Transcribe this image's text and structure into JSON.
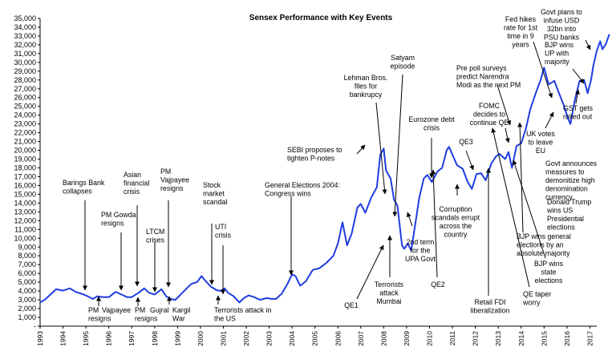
{
  "chart_data": {
    "type": "line",
    "title": "Sensex Performance with Key Events",
    "xlabel": "",
    "ylabel": "",
    "xlim": [
      1993,
      2017.3
    ],
    "ylim": [
      0,
      35000
    ],
    "grid": false,
    "series_color": "#1f3de0",
    "y_ticks": [
      "-",
      "1,000",
      "2,000",
      "3,000",
      "4,000",
      "5,000",
      "6,000",
      "7,000",
      "8,000",
      "9,000",
      "10,000",
      "11,000",
      "12,000",
      "13,000",
      "14,000",
      "15,000",
      "16,000",
      "17,000",
      "18,000",
      "19,000",
      "20,000",
      "21,000",
      "22,000",
      "23,000",
      "24,000",
      "25,000",
      "26,000",
      "27,000",
      "28,000",
      "29,000",
      "30,000",
      "31,000",
      "32,000",
      "33,000",
      "34,000",
      "35,000"
    ],
    "x_ticks": [
      "1993",
      "1994",
      "1995",
      "1996",
      "1997",
      "1998",
      "1999",
      "2000",
      "2001",
      "2002",
      "2003",
      "2004",
      "2005",
      "2006",
      "2007",
      "2008",
      "2009",
      "2010",
      "2011",
      "2012",
      "2013",
      "2014",
      "2015",
      "2016",
      "2017"
    ],
    "series": [
      {
        "values": [
          [
            1993.0,
            2700
          ],
          [
            1993.2,
            3000
          ],
          [
            1993.45,
            3600
          ],
          [
            1993.7,
            4200
          ],
          [
            1994.0,
            4050
          ],
          [
            1994.3,
            4300
          ],
          [
            1994.55,
            3900
          ],
          [
            1994.8,
            3700
          ],
          [
            1995.0,
            3500
          ],
          [
            1995.3,
            3100
          ],
          [
            1995.5,
            3400
          ],
          [
            1995.75,
            3300
          ],
          [
            1996.0,
            3300
          ],
          [
            1996.3,
            3900
          ],
          [
            1996.55,
            3600
          ],
          [
            1996.8,
            3300
          ],
          [
            1997.0,
            3300
          ],
          [
            1997.3,
            3800
          ],
          [
            1997.55,
            4300
          ],
          [
            1997.75,
            3800
          ],
          [
            1998.0,
            3600
          ],
          [
            1998.3,
            4200
          ],
          [
            1998.5,
            3400
          ],
          [
            1998.7,
            3100
          ],
          [
            1998.9,
            3000
          ],
          [
            1999.1,
            3500
          ],
          [
            1999.4,
            4300
          ],
          [
            1999.6,
            4800
          ],
          [
            1999.85,
            5000
          ],
          [
            2000.05,
            5700
          ],
          [
            2000.2,
            5200
          ],
          [
            2000.45,
            4500
          ],
          [
            2000.7,
            4100
          ],
          [
            2000.9,
            4000
          ],
          [
            2001.05,
            4300
          ],
          [
            2001.2,
            3800
          ],
          [
            2001.45,
            3400
          ],
          [
            2001.7,
            2700
          ],
          [
            2001.9,
            3200
          ],
          [
            2002.1,
            3500
          ],
          [
            2002.35,
            3300
          ],
          [
            2002.6,
            3000
          ],
          [
            2002.9,
            3200
          ],
          [
            2003.1,
            3100
          ],
          [
            2003.3,
            3100
          ],
          [
            2003.55,
            3700
          ],
          [
            2003.8,
            4800
          ],
          [
            2004.0,
            5900
          ],
          [
            2004.15,
            5700
          ],
          [
            2004.35,
            4600
          ],
          [
            2004.6,
            5100
          ],
          [
            2004.9,
            6400
          ],
          [
            2005.2,
            6600
          ],
          [
            2005.5,
            7200
          ],
          [
            2005.8,
            8000
          ],
          [
            2006.0,
            9400
          ],
          [
            2006.2,
            11800
          ],
          [
            2006.4,
            9200
          ],
          [
            2006.6,
            10500
          ],
          [
            2006.85,
            13500
          ],
          [
            2007.0,
            13900
          ],
          [
            2007.2,
            12900
          ],
          [
            2007.45,
            14600
          ],
          [
            2007.7,
            15800
          ],
          [
            2007.85,
            19500
          ],
          [
            2008.0,
            20200
          ],
          [
            2008.1,
            17700
          ],
          [
            2008.3,
            16800
          ],
          [
            2008.45,
            14400
          ],
          [
            2008.6,
            13700
          ],
          [
            2008.8,
            9200
          ],
          [
            2008.9,
            8800
          ],
          [
            2009.05,
            9400
          ],
          [
            2009.2,
            8600
          ],
          [
            2009.4,
            12000
          ],
          [
            2009.55,
            14600
          ],
          [
            2009.75,
            16800
          ],
          [
            2009.9,
            17200
          ],
          [
            2010.1,
            16400
          ],
          [
            2010.35,
            17600
          ],
          [
            2010.55,
            18000
          ],
          [
            2010.75,
            20000
          ],
          [
            2010.85,
            20400
          ],
          [
            2011.0,
            19500
          ],
          [
            2011.2,
            18300
          ],
          [
            2011.45,
            17900
          ],
          [
            2011.65,
            16500
          ],
          [
            2011.85,
            15600
          ],
          [
            2012.05,
            17300
          ],
          [
            2012.25,
            17400
          ],
          [
            2012.45,
            16600
          ],
          [
            2012.7,
            18500
          ],
          [
            2012.9,
            19300
          ],
          [
            2013.05,
            19600
          ],
          [
            2013.3,
            19000
          ],
          [
            2013.45,
            19800
          ],
          [
            2013.6,
            18000
          ],
          [
            2013.8,
            20500
          ],
          [
            2014.0,
            20800
          ],
          [
            2014.2,
            22400
          ],
          [
            2014.4,
            24700
          ],
          [
            2014.65,
            26600
          ],
          [
            2014.85,
            28000
          ],
          [
            2015.0,
            29400
          ],
          [
            2015.2,
            27500
          ],
          [
            2015.45,
            27900
          ],
          [
            2015.65,
            26500
          ],
          [
            2015.85,
            25200
          ],
          [
            2016.05,
            23600
          ],
          [
            2016.15,
            23000
          ],
          [
            2016.35,
            25800
          ],
          [
            2016.55,
            27900
          ],
          [
            2016.75,
            28000
          ],
          [
            2016.9,
            26500
          ],
          [
            2017.05,
            28000
          ],
          [
            2017.15,
            29600
          ],
          [
            2017.3,
            31300
          ],
          [
            2017.45,
            32400
          ],
          [
            2017.55,
            31500
          ],
          [
            2017.7,
            32100
          ],
          [
            2017.85,
            33200
          ]
        ]
      }
    ],
    "annotations": [
      {
        "lines": [
          "Barings Bank",
          "collapses"
        ]
      },
      {
        "lines": [
          "PM  Gowda",
          "resigns"
        ]
      },
      {
        "lines": [
          "Asian",
          "financial",
          "crisis"
        ]
      },
      {
        "lines": [
          "PM",
          "Vajpayee",
          "resigns"
        ]
      },
      {
        "lines": [
          "LTCM",
          "crises"
        ]
      },
      {
        "lines": [
          "Stock",
          "market",
          "scandal"
        ]
      },
      {
        "lines": [
          "UTI",
          "crisis"
        ]
      },
      {
        "lines": [
          "PM",
          "resigns"
        ]
      },
      {
        "lines": [
          "Vajpayee"
        ]
      },
      {
        "lines": [
          "PM",
          "resigns"
        ]
      },
      {
        "lines": [
          "Gujral"
        ]
      },
      {
        "lines": [
          "Kargil",
          "War"
        ]
      },
      {
        "lines": [
          "Terrorists attack in",
          "the US"
        ]
      },
      {
        "lines": [
          "General Elections 2004:",
          "Congress wins"
        ]
      },
      {
        "lines": [
          "SEBI proposes to",
          "tighten P-notes"
        ]
      },
      {
        "lines": [
          "Lehman Bros.",
          "files for",
          "bankrupcy"
        ]
      },
      {
        "lines": [
          "Satyam",
          "episode"
        ]
      },
      {
        "lines": [
          "QE1"
        ]
      },
      {
        "lines": [
          "Terrorists",
          "attack",
          "Mumbai"
        ]
      },
      {
        "lines": [
          "2nd term",
          "for the",
          "UPA  Govt"
        ]
      },
      {
        "lines": [
          "Eurozone debt",
          "crisis"
        ]
      },
      {
        "lines": [
          "QE2"
        ]
      },
      {
        "lines": [
          "QE3"
        ]
      },
      {
        "lines": [
          "Corruption",
          "scandals errupt",
          "across the",
          "country"
        ]
      },
      {
        "lines": [
          "Retail FDI",
          "liberalization"
        ]
      },
      {
        "lines": [
          "FOMC",
          "decides to",
          "continue QE"
        ]
      },
      {
        "lines": [
          "Pre poll surveys",
          "predict Narendra",
          "Modi as the next PM"
        ]
      },
      {
        "lines": [
          "Fed hikes",
          "rate for 1st",
          "time in 9",
          "years"
        ]
      },
      {
        "lines": [
          "Govt plans to",
          "infuse USD",
          "32bn into",
          "PSU  banks"
        ]
      },
      {
        "lines": [
          "BJP  wins",
          "UP  with",
          "majority"
        ]
      },
      {
        "lines": [
          "GST gets",
          "rolled out"
        ]
      },
      {
        "lines": [
          "UK votes",
          "to leave",
          "EU"
        ]
      },
      {
        "lines": [
          "Govt announces",
          "measures to",
          "demonitize high",
          "denomination",
          "currency"
        ]
      },
      {
        "lines": [
          "Donald  Trump",
          "wins US",
          "Presidential",
          "elections"
        ]
      },
      {
        "lines": [
          "BJP  wins general",
          "elections by an",
          "absolute majority"
        ]
      },
      {
        "lines": [
          "BJP  wins",
          "state",
          "elections"
        ]
      },
      {
        "lines": [
          "QE taper",
          "worry"
        ]
      }
    ]
  }
}
